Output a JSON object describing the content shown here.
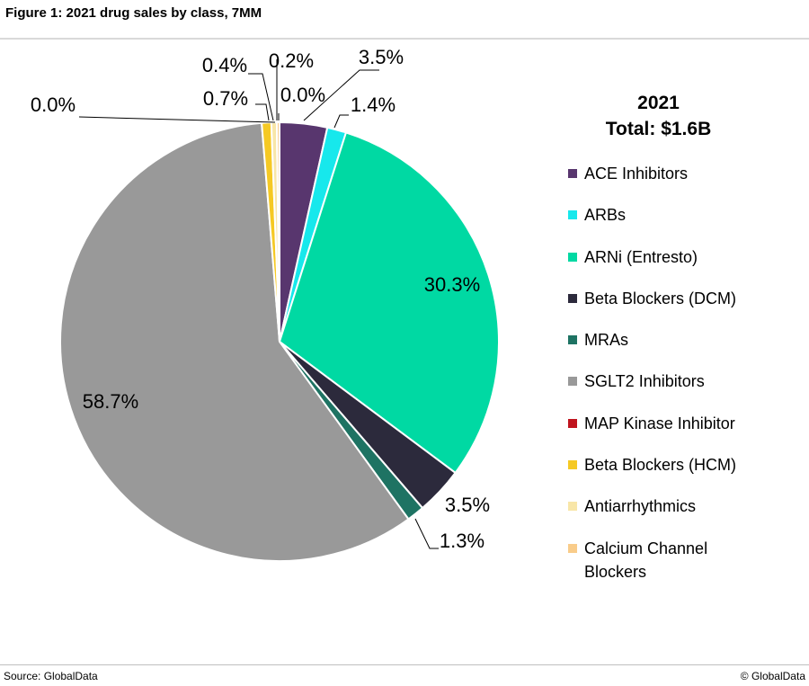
{
  "header": {
    "title": "Figure 1: 2021 drug sales by class, 7MM"
  },
  "footer": {
    "source": "Source: GlobalData",
    "copyright": "© GlobalData"
  },
  "chart_data": {
    "type": "pie",
    "title": "2021",
    "subtitle": "Total: $1.6B",
    "legend_position": "right",
    "slices": [
      {
        "label": "ACE Inhibitors",
        "value": 3.5,
        "display": "3.5%",
        "color": "#58366e"
      },
      {
        "label": "ARBs",
        "value": 1.4,
        "display": "1.4%",
        "color": "#17e8ec"
      },
      {
        "label": "ARNi (Entresto)",
        "value": 30.3,
        "display": "30.3%",
        "color": "#00d9a3"
      },
      {
        "label": "Beta Blockers (DCM)",
        "value": 3.5,
        "display": "3.5%",
        "color": "#2c2a3c"
      },
      {
        "label": "MRAs",
        "value": 1.3,
        "display": "1.3%",
        "color": "#1e7363"
      },
      {
        "label": "SGLT2 Inhibitors",
        "value": 58.7,
        "display": "58.7%",
        "color": "#999999"
      },
      {
        "label": "MAP Kinase Inhibitor",
        "value": 0.0,
        "display": "0.0%",
        "color": "#c0141e"
      },
      {
        "label": "Beta Blockers (HCM)",
        "value": 0.7,
        "display": "0.7%",
        "color": "#f5c924"
      },
      {
        "label": "Antiarrhythmics",
        "value": 0.4,
        "display": "0.4%",
        "color": "#f8e6a8"
      },
      {
        "label": "Calcium Channel Blockers",
        "value": 0.2,
        "display": "0.2%",
        "color": "#f9cc8a"
      }
    ],
    "extra_labels": [
      "0.0%"
    ]
  },
  "legend": {
    "items": [
      {
        "label": "ACE Inhibitors",
        "color": "#58366e"
      },
      {
        "label": "ARBs",
        "color": "#17e8ec"
      },
      {
        "label": "ARNi (Entresto)",
        "color": "#00d9a3"
      },
      {
        "label": "Beta Blockers (DCM)",
        "color": "#2c2a3c"
      },
      {
        "label": "MRAs",
        "color": "#1e7363"
      },
      {
        "label": "SGLT2 Inhibitors",
        "color": "#999999"
      },
      {
        "label": "MAP Kinase Inhibitor",
        "color": "#c0141e"
      },
      {
        "label": "Beta Blockers (HCM)",
        "color": "#f5c924"
      },
      {
        "label": "Antiarrhythmics",
        "color": "#f8e6a8"
      },
      {
        "label": "Calcium Channel",
        "label2": "Blockers",
        "color": "#f9cc8a"
      }
    ]
  }
}
